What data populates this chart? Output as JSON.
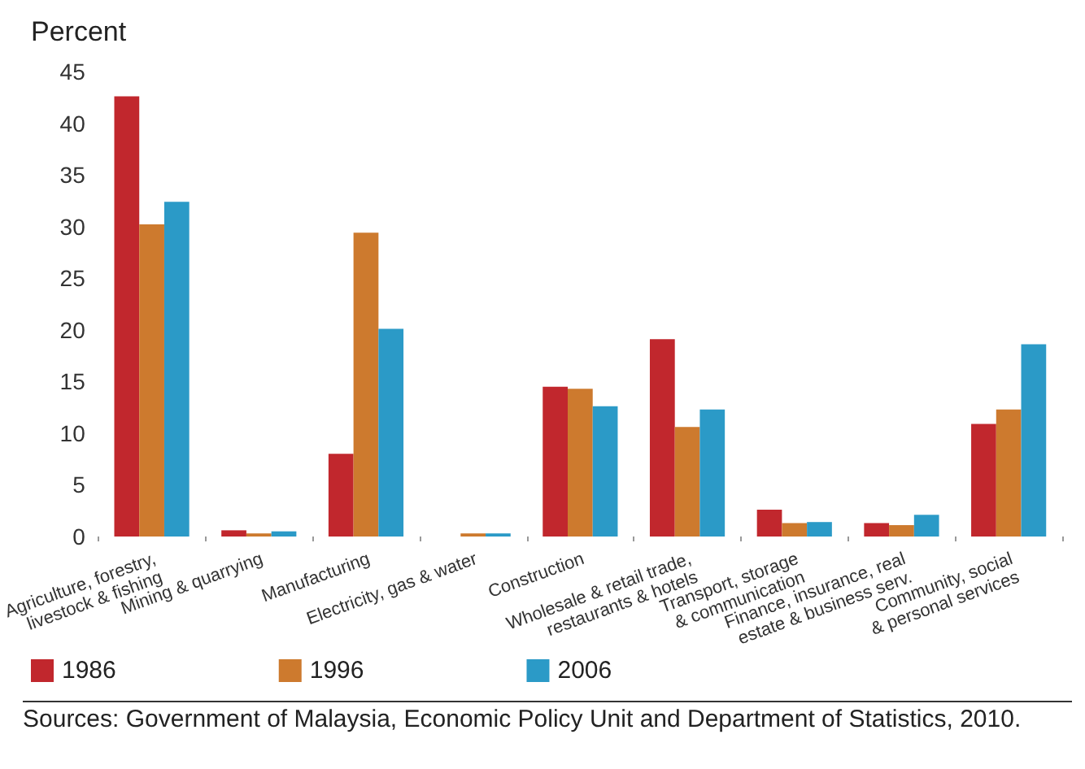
{
  "chart_data": {
    "type": "bar",
    "ylabel": "Percent",
    "categories": [
      "Agriculture, forestry,\nlivestock & fishing",
      "Mining & quarrying",
      "Manufacturing",
      "Electricity, gas & water",
      "Construction",
      "Wholesale & retail trade,\nrestaurants & hotels",
      "Transport, storage\n& communication",
      "Finance, insurance, real\nestate & business serv.",
      "Community, social\n& personal services"
    ],
    "series": [
      {
        "name": "1986",
        "color": "#c1272d",
        "values": [
          42.6,
          0.6,
          8.0,
          0,
          14.5,
          19.1,
          2.6,
          1.3,
          10.9
        ]
      },
      {
        "name": "1996",
        "color": "#cd7a2e",
        "values": [
          30.2,
          0.3,
          29.4,
          0.3,
          14.3,
          10.6,
          1.3,
          1.1,
          12.3
        ]
      },
      {
        "name": "2006",
        "color": "#2b9ac7",
        "values": [
          32.4,
          0.5,
          20.1,
          0.3,
          12.6,
          12.3,
          1.4,
          2.1,
          18.6
        ]
      }
    ],
    "ylim": [
      0,
      45
    ],
    "yticks": [
      0,
      5,
      10,
      15,
      20,
      25,
      30,
      35,
      40,
      45
    ],
    "grid": false,
    "legend": "bottom left",
    "annotations": [
      "Sources: Government of Malaysia, Economic Policy Unit and Department of Statistics, 2010."
    ]
  }
}
